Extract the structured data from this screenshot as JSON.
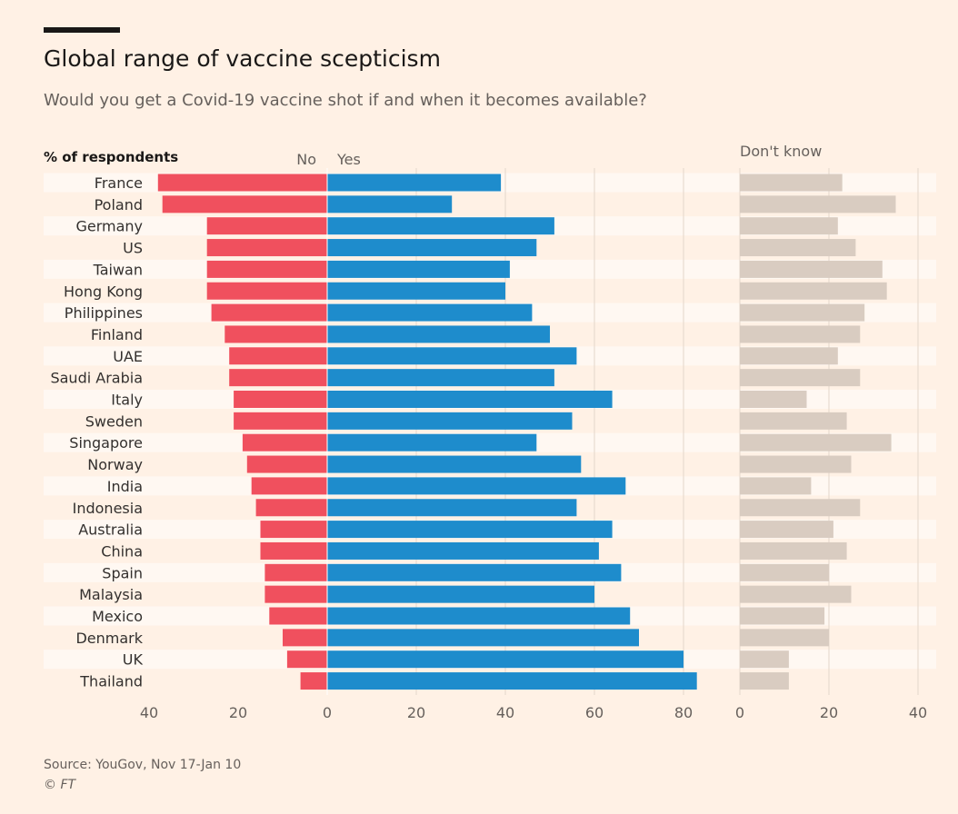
{
  "title": "Global range of vaccine scepticism",
  "subtitle": "Would you get a Covid-19 vaccine shot if and when it becomes available?",
  "source": "Source: YouGov, Nov 17-Jan 10",
  "credit": "© FT",
  "chart_data": {
    "type": "bar",
    "orientation": "horizontal",
    "unit_label": "% of respondents",
    "categories": [
      "France",
      "Poland",
      "Germany",
      "US",
      "Taiwan",
      "Hong Kong",
      "Philippines",
      "Finland",
      "UAE",
      "Saudi Arabia",
      "Italy",
      "Sweden",
      "Singapore",
      "Norway",
      "India",
      "Indonesia",
      "Australia",
      "China",
      "Spain",
      "Malaysia",
      "Mexico",
      "Denmark",
      "UK",
      "Thailand"
    ],
    "series": [
      {
        "name": "No",
        "color": "#f0505e",
        "values": [
          38,
          37,
          27,
          27,
          27,
          27,
          26,
          23,
          22,
          22,
          21,
          21,
          19,
          18,
          17,
          16,
          15,
          15,
          14,
          14,
          13,
          10,
          9,
          6
        ]
      },
      {
        "name": "Yes",
        "color": "#1e8ccc",
        "values": [
          39,
          28,
          51,
          47,
          41,
          40,
          46,
          50,
          56,
          51,
          64,
          55,
          47,
          57,
          67,
          56,
          64,
          61,
          66,
          60,
          68,
          70,
          80,
          83
        ]
      },
      {
        "name": "Don't know",
        "color": "#d9ccc1",
        "values": [
          23,
          35,
          22,
          26,
          32,
          33,
          28,
          27,
          22,
          27,
          15,
          24,
          34,
          25,
          16,
          27,
          21,
          24,
          20,
          25,
          19,
          20,
          11,
          11
        ]
      }
    ],
    "no_axis": {
      "ticks": [
        "40",
        "20",
        "0"
      ],
      "range": [
        0,
        40
      ]
    },
    "yes_axis": {
      "ticks": [
        "20",
        "40",
        "60",
        "80"
      ],
      "range": [
        0,
        85
      ]
    },
    "dk_axis": {
      "ticks": [
        "0",
        "20",
        "40"
      ],
      "range": [
        0,
        45
      ]
    },
    "grid": true
  }
}
